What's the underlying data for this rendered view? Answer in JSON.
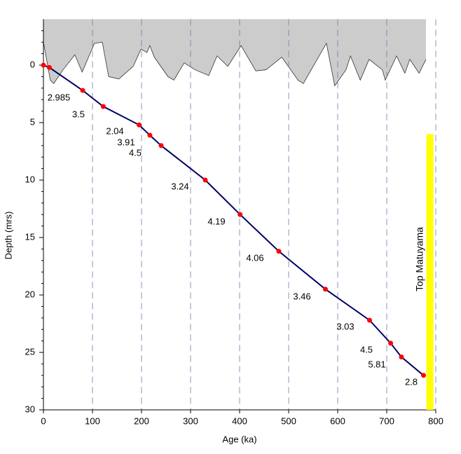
{
  "chart_data": {
    "type": "line",
    "xlabel": "Age (ka)",
    "ylabel": "Depth (mrs)",
    "xlim": [
      0,
      800
    ],
    "ylim": [
      -4,
      30
    ],
    "xticks": [
      0,
      100,
      200,
      300,
      400,
      500,
      600,
      700,
      800
    ],
    "yticks": [
      0,
      5,
      10,
      15,
      20,
      25,
      30
    ],
    "yminorticks": [
      -3,
      -2,
      -1,
      1,
      2,
      3,
      4,
      6,
      7,
      8,
      9,
      11,
      12,
      13,
      14,
      16,
      17,
      18,
      19,
      21,
      22,
      23,
      24,
      26,
      27,
      28,
      29
    ],
    "grid": true,
    "y_inverted": true,
    "series": [
      {
        "color": "#000066",
        "marker_color": "#ff0000",
        "x": [
          0,
          12,
          80,
          122,
          195,
          217,
          240,
          330,
          401,
          480,
          575,
          665,
          708,
          730,
          775
        ],
        "values": [
          0,
          0.2,
          2.2,
          3.6,
          5.2,
          6.1,
          7.0,
          10.0,
          13.0,
          16.2,
          19.5,
          22.2,
          24.2,
          25.4,
          27.0
        ]
      }
    ],
    "annotations": [
      "2.985",
      "3.5",
      "2.04",
      "3.91",
      "4.5",
      "3.24",
      "4.19",
      "4.06",
      "3.46",
      "3.03",
      "4.5",
      "5.81",
      "2.8"
    ],
    "area": {
      "color": "#cccccc",
      "x": [
        0,
        14,
        21,
        40,
        64,
        79,
        104,
        120,
        133,
        154,
        183,
        199,
        211,
        217,
        226,
        254,
        266,
        287,
        309,
        337,
        354,
        376,
        403,
        433,
        454,
        486,
        519,
        530,
        550,
        577,
        594,
        617,
        626,
        646,
        664,
        691,
        697,
        720,
        737,
        747,
        766,
        780
      ],
      "values": [
        -2.0,
        1.3,
        1.6,
        0.4,
        -0.9,
        0.6,
        -1.9,
        -2.0,
        1.0,
        1.2,
        0.1,
        -1.4,
        -1.1,
        -1.7,
        -0.7,
        1.0,
        1.3,
        -0.2,
        0.4,
        0.9,
        -0.8,
        0.1,
        -1.7,
        0.5,
        0.4,
        -0.7,
        1.3,
        1.6,
        0.1,
        -1.9,
        1.8,
        0.4,
        -0.8,
        1.3,
        -0.5,
        0.4,
        1.3,
        -0.8,
        0.7,
        -0.5,
        0.7,
        -0.5
      ]
    },
    "band": {
      "label": "Top Matuyama",
      "color": "#ffff00",
      "x": 788,
      "depth": [
        6,
        30
      ]
    }
  }
}
